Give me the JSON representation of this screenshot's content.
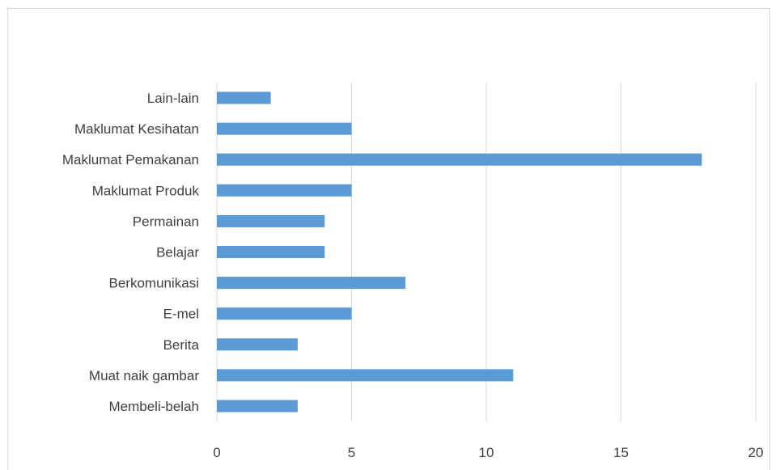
{
  "chart_data": {
    "type": "bar",
    "orientation": "horizontal",
    "title": "",
    "xlabel": "",
    "ylabel": "",
    "categories": [
      "Lain-lain",
      "Maklumat Kesihatan",
      "Maklumat Pemakanan",
      "Maklumat Produk",
      "Permainan",
      "Belajar",
      "Berkomunikasi",
      "E-mel",
      "Berita",
      "Muat naik gambar",
      "Membeli-belah"
    ],
    "values": [
      2,
      5,
      18,
      5,
      4,
      4,
      7,
      5,
      3,
      11,
      3
    ],
    "xlim": [
      0,
      20
    ],
    "xticks": [
      0,
      5,
      10,
      15,
      20
    ],
    "xtick_labels": [
      "0",
      "5",
      "10",
      "15",
      "20"
    ],
    "grid": "vertical",
    "legend": "none",
    "bar_color": "#5b9bd5",
    "grid_color": "#d9d9d9"
  }
}
